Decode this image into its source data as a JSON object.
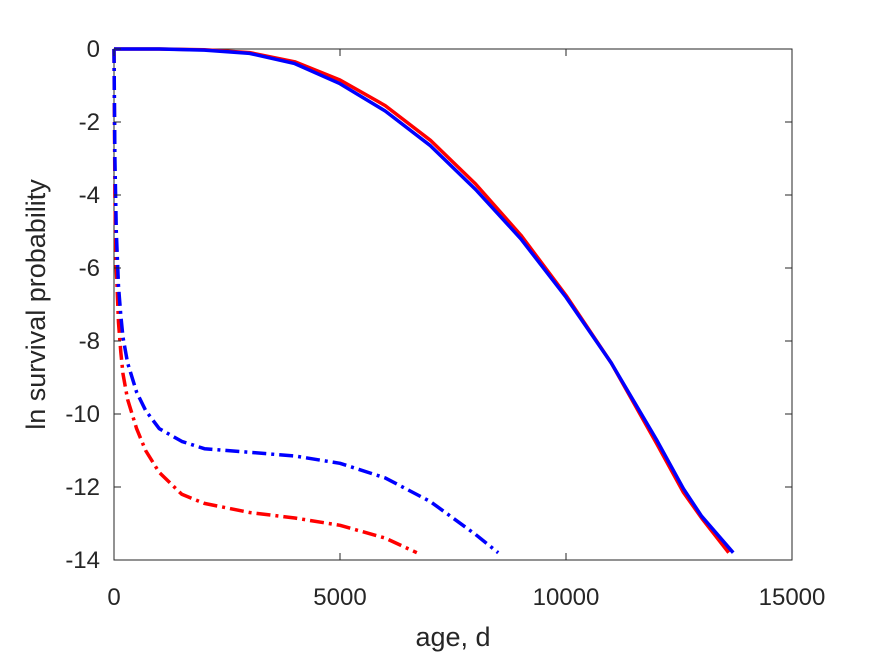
{
  "chart_data": {
    "type": "line",
    "title": "",
    "xlabel": "age, d",
    "ylabel": "ln survival probability",
    "xlim": [
      0,
      15000
    ],
    "ylim": [
      -14,
      0
    ],
    "xticks": [
      0,
      5000,
      10000,
      15000
    ],
    "yticks": [
      0,
      -2,
      -4,
      -6,
      -8,
      -10,
      -12,
      -14
    ],
    "xtick_labels": [
      "0",
      "5000",
      "10000",
      "15000"
    ],
    "ytick_labels": [
      "0",
      "-2",
      "-4",
      "-6",
      "-8",
      "-10",
      "-12",
      "-14"
    ],
    "grid": false,
    "legend": null,
    "series": [
      {
        "color": "#ff0000",
        "style": "solid",
        "x": [
          0,
          1000,
          2000,
          3000,
          4000,
          5000,
          6000,
          7000,
          8000,
          9000,
          10000,
          11000,
          12000,
          12600,
          13000,
          13600
        ],
        "y": [
          0,
          0,
          -0.02,
          -0.1,
          -0.35,
          -0.85,
          -1.55,
          -2.5,
          -3.7,
          -5.1,
          -6.75,
          -8.6,
          -10.8,
          -12.15,
          -12.85,
          -13.8
        ]
      },
      {
        "color": "#0000ff",
        "style": "solid",
        "x": [
          0,
          1000,
          2000,
          3000,
          4000,
          5000,
          6000,
          7000,
          8000,
          9000,
          10000,
          11000,
          12000,
          12600,
          13000,
          13700
        ],
        "y": [
          0,
          0,
          -0.03,
          -0.12,
          -0.4,
          -0.95,
          -1.7,
          -2.65,
          -3.85,
          -5.2,
          -6.8,
          -8.6,
          -10.7,
          -12.05,
          -12.8,
          -13.8
        ]
      },
      {
        "color": "#ff0000",
        "style": "dashdot",
        "x": [
          0,
          20,
          50,
          100,
          150,
          200,
          300,
          500,
          700,
          1000,
          1500,
          2000,
          3000,
          4000,
          5000,
          6000,
          6700
        ],
        "y": [
          0,
          -4,
          -6,
          -7.5,
          -8.3,
          -8.9,
          -9.6,
          -10.4,
          -11,
          -11.6,
          -12.2,
          -12.45,
          -12.7,
          -12.85,
          -13.05,
          -13.4,
          -13.8
        ]
      },
      {
        "color": "#0000ff",
        "style": "dashdot",
        "x": [
          0,
          20,
          50,
          100,
          150,
          200,
          300,
          500,
          700,
          1000,
          1500,
          2000,
          3000,
          4000,
          5000,
          6000,
          7000,
          8000,
          8500
        ],
        "y": [
          0,
          -3,
          -5,
          -6.5,
          -7.3,
          -7.9,
          -8.6,
          -9.4,
          -9.9,
          -10.4,
          -10.75,
          -10.95,
          -11.05,
          -11.15,
          -11.35,
          -11.75,
          -12.4,
          -13.3,
          -13.8
        ]
      }
    ]
  }
}
